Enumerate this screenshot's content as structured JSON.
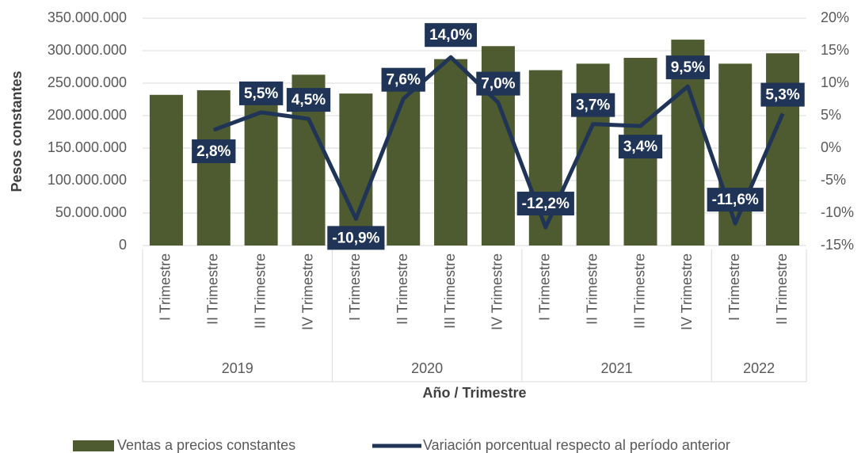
{
  "chart_data": {
    "type": "bar_line",
    "categories": [
      "I Trimestre",
      "II Trimestre",
      "III Trimestre",
      "IV Trimestre",
      "I Trimestre",
      "II Trimestre",
      "III Trimestre",
      "IV Trimestre",
      "I Trimestre",
      "II Trimestre",
      "III Trimestre",
      "IV Trimestre",
      "I Trimestre",
      "II Trimestre"
    ],
    "groups": [
      {
        "name": "2019",
        "span": 4
      },
      {
        "name": "2020",
        "span": 4
      },
      {
        "name": "2021",
        "span": 4
      },
      {
        "name": "2022",
        "span": 2
      }
    ],
    "xlabel": "Año / Trimestre",
    "ylabel": "Pesos constantes",
    "series": [
      {
        "name": "Ventas a precios constantes",
        "type": "bar",
        "color": "#4e5a30",
        "values": [
          232000000,
          239000000,
          251000000,
          263000000,
          234000000,
          252000000,
          287000000,
          307000000,
          270000000,
          280000000,
          289000000,
          317000000,
          280000000,
          296000000
        ]
      },
      {
        "name": "Variación porcentual respecto al período anterior",
        "type": "line",
        "axis": "y2",
        "color": "#1f3456",
        "values": [
          null,
          2.8,
          5.5,
          4.5,
          -10.9,
          7.6,
          14.0,
          7.0,
          -12.2,
          3.7,
          3.4,
          9.5,
          -11.6,
          5.3
        ],
        "value_labels": [
          null,
          "2,8%",
          "5,5%",
          "4,5%",
          "-10,9%",
          "7,6%",
          "14,0%",
          "7,0%",
          "-12,2%",
          "3,7%",
          "3,4%",
          "9,5%",
          "-11,6%",
          "5,3%"
        ]
      }
    ],
    "ylim": [
      0,
      350000000
    ],
    "yticks": [
      0,
      {
        "value": 50000000,
        "label": "50.000.000"
      },
      {
        "value": 100000000,
        "label": "100.000.000"
      },
      {
        "value": 150000000,
        "label": "150.000.000"
      },
      {
        "value": 200000000,
        "label": "200.000.000"
      },
      {
        "value": 250000000,
        "label": "250.000.000"
      },
      {
        "value": 300000000,
        "label": "300.000.000"
      },
      {
        "value": 350000000,
        "label": "350.000.000"
      }
    ],
    "y2lim": [
      -15,
      20
    ],
    "y2ticks": [
      {
        "value": -15,
        "label": "-15%"
      },
      {
        "value": -10,
        "label": "-10%"
      },
      {
        "value": -5,
        "label": "-5%"
      },
      {
        "value": 0,
        "label": "0%"
      },
      {
        "value": 5,
        "label": "5%"
      },
      {
        "value": 10,
        "label": "10%"
      },
      {
        "value": 15,
        "label": "15%"
      },
      {
        "value": 20,
        "label": "20%"
      }
    ],
    "grid": true,
    "legend": "bottom"
  }
}
